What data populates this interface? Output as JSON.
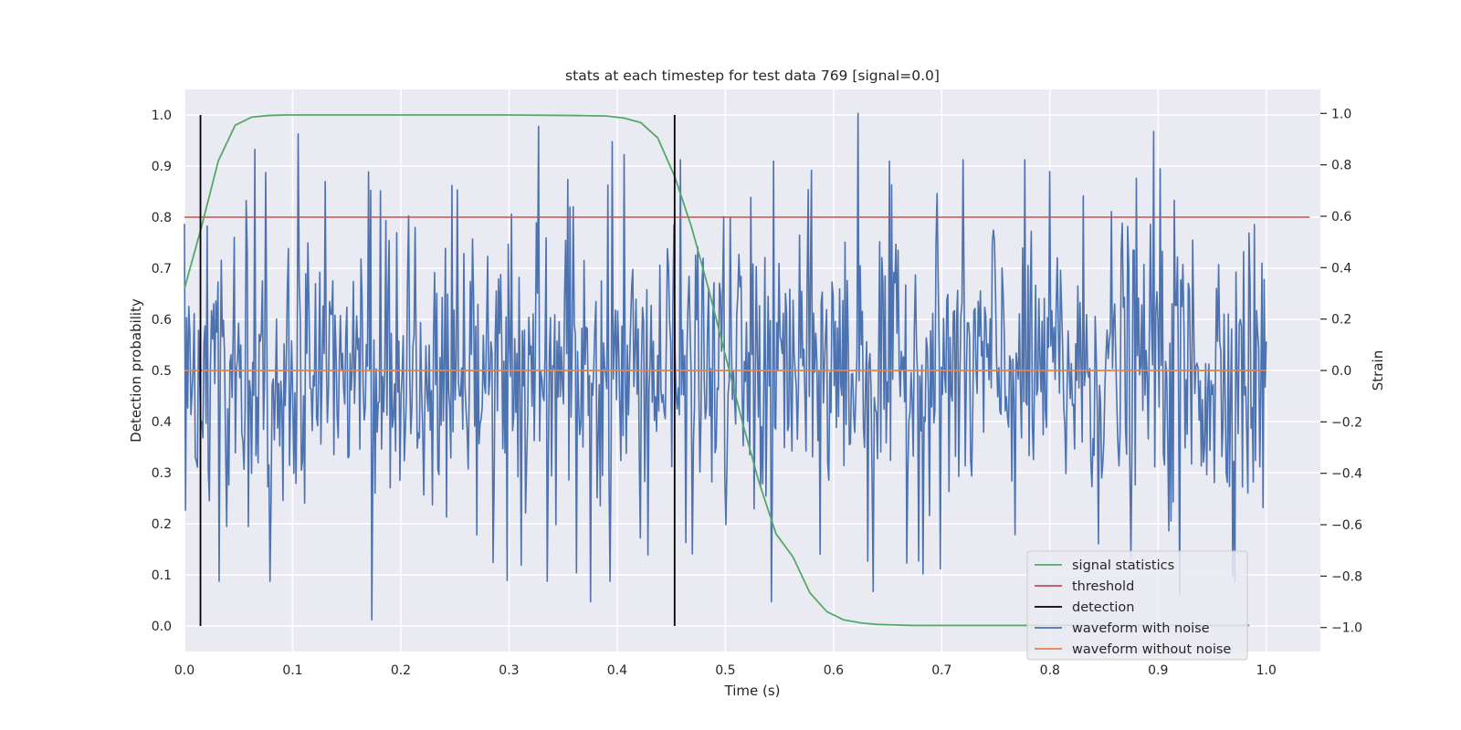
{
  "chart_data": {
    "type": "line",
    "title": "stats at each timestep for test data 769 [signal=0.0]",
    "xlabel": "Time (s)",
    "ylabel": "Detection probability",
    "y2label": "Strain",
    "xlim": [
      0.0,
      1.05
    ],
    "ylim": [
      -0.05,
      1.05
    ],
    "y2lim": [
      -1.0933,
      1.0933
    ],
    "xticks": [
      "0.0",
      "0.1",
      "0.2",
      "0.3",
      "0.4",
      "0.5",
      "0.6",
      "0.7",
      "0.8",
      "0.9",
      "1.0"
    ],
    "yticks": [
      "0.0",
      "0.1",
      "0.2",
      "0.3",
      "0.4",
      "0.5",
      "0.6",
      "0.7",
      "0.8",
      "0.9",
      "1.0"
    ],
    "y2ticks": [
      "−1.0",
      "−0.8",
      "−0.6",
      "−0.4",
      "−0.2",
      "0.0",
      "0.2",
      "0.4",
      "0.6",
      "0.8",
      "1.0"
    ],
    "grid": true,
    "legend_position": "lower-right",
    "legend": [
      {
        "label": "signal statistics",
        "color": "#55a868"
      },
      {
        "label": "threshold",
        "color": "#c44e52"
      },
      {
        "label": "detection",
        "color": "#000000"
      },
      {
        "label": "waveform with noise",
        "color": "#4c72b0"
      },
      {
        "label": "waveform without noise",
        "color": "#dd8452"
      }
    ],
    "signal_statistics": {
      "x": [
        0.0,
        0.0156,
        0.0313,
        0.0469,
        0.0625,
        0.0781,
        0.0938,
        0.1,
        0.2,
        0.3,
        0.36,
        0.39,
        0.4063,
        0.4219,
        0.4375,
        0.4531,
        0.4688,
        0.4844,
        0.5,
        0.5156,
        0.5313,
        0.5469,
        0.5625,
        0.5781,
        0.5938,
        0.6094,
        0.625,
        0.6406,
        0.6563,
        0.6719,
        0.7,
        0.8,
        0.9,
        0.9844
      ],
      "y": [
        0.66,
        0.78,
        0.91,
        0.98,
        0.996,
        0.999,
        1.0,
        1.0,
        1.0,
        1.0,
        0.999,
        0.998,
        0.994,
        0.985,
        0.955,
        0.88,
        0.78,
        0.66,
        0.53,
        0.4,
        0.28,
        0.18,
        0.135,
        0.065,
        0.028,
        0.012,
        0.006,
        0.003,
        0.002,
        0.001,
        0.001,
        0.001,
        0.001,
        0.001
      ]
    },
    "threshold": 0.8,
    "detections_x": [
      0.0148,
      0.4531
    ],
    "waveform_without_noise": {
      "x_start": 0.0,
      "x_end": 1.0,
      "value": 0.0
    },
    "waveform_with_noise": {
      "x_start": 0.0,
      "x_end": 1.0,
      "n_samples": 1000,
      "std": 0.3,
      "visible_extremes": [
        {
          "x": 0.065,
          "y": 0.86
        },
        {
          "x": 0.075,
          "y": 0.77
        },
        {
          "x": 0.105,
          "y": 0.92
        },
        {
          "x": 0.173,
          "y": -0.97
        },
        {
          "x": 0.247,
          "y": 0.72
        },
        {
          "x": 0.327,
          "y": 0.95
        },
        {
          "x": 0.375,
          "y": -0.9
        },
        {
          "x": 0.395,
          "y": 0.89
        },
        {
          "x": 0.406,
          "y": 0.84
        },
        {
          "x": 0.543,
          "y": -0.9
        },
        {
          "x": 0.623,
          "y": 1.0
        },
        {
          "x": 0.637,
          "y": -0.86
        },
        {
          "x": 0.896,
          "y": 0.93
        },
        {
          "x": 0.92,
          "y": -0.87
        },
        {
          "x": 0.985,
          "y": 0.34
        },
        {
          "x": 0.99,
          "y": -0.35
        }
      ]
    }
  }
}
